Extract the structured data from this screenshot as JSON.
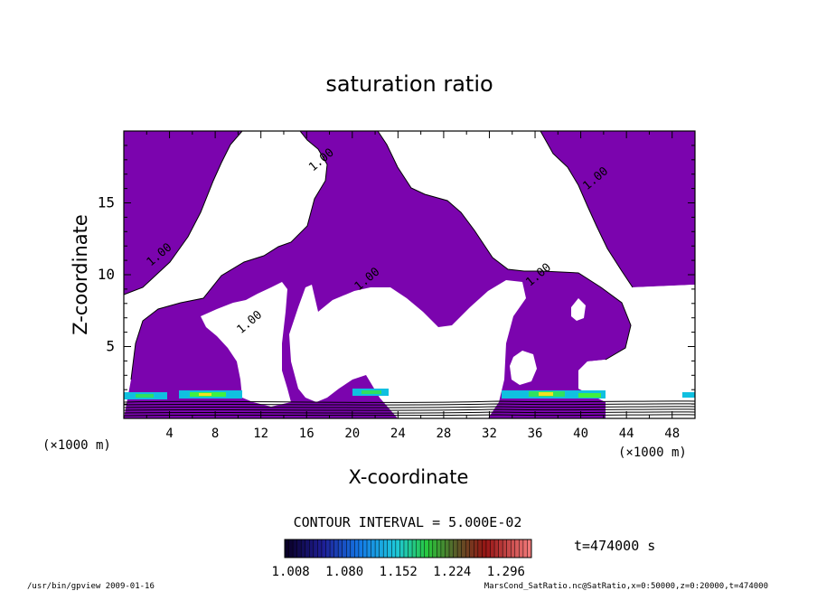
{
  "chart_data": {
    "type": "heatmap",
    "title": "saturation ratio",
    "xlabel": "X-coordinate",
    "ylabel": "Z-coordinate",
    "x_unit": "(×1000 m)",
    "x_unit_right": "(×1000 m)",
    "xlim": [
      0,
      50
    ],
    "ylim": [
      0,
      20
    ],
    "x_ticks": [
      4,
      8,
      12,
      16,
      20,
      24,
      28,
      32,
      36,
      40,
      44,
      48
    ],
    "y_ticks": [
      5,
      10,
      15
    ],
    "contour_label": "1.00",
    "contour_label_positions": [
      [
        3.3,
        11.2
      ],
      [
        11.2,
        6.5
      ],
      [
        17.5,
        17.8
      ],
      [
        21.5,
        9.5
      ],
      [
        36.5,
        9.8
      ],
      [
        41.5,
        16.5
      ]
    ],
    "supersaturated_fill_color": "#7b04ae",
    "contour_interval_text": "CONTOUR INTERVAL = 5.000E-02",
    "time_text": "t=474000 s",
    "colorbar_ticks": [
      "1.008",
      "1.080",
      "1.152",
      "1.224",
      "1.296"
    ],
    "colorbar_range": [
      1.0,
      1.33
    ],
    "footer_left": "/usr/bin/gpview  2009-01-16",
    "footer_right": "MarsCond_SatRatio.nc@SatRatio,x=0:50000,z=0:20000,t=474000"
  }
}
